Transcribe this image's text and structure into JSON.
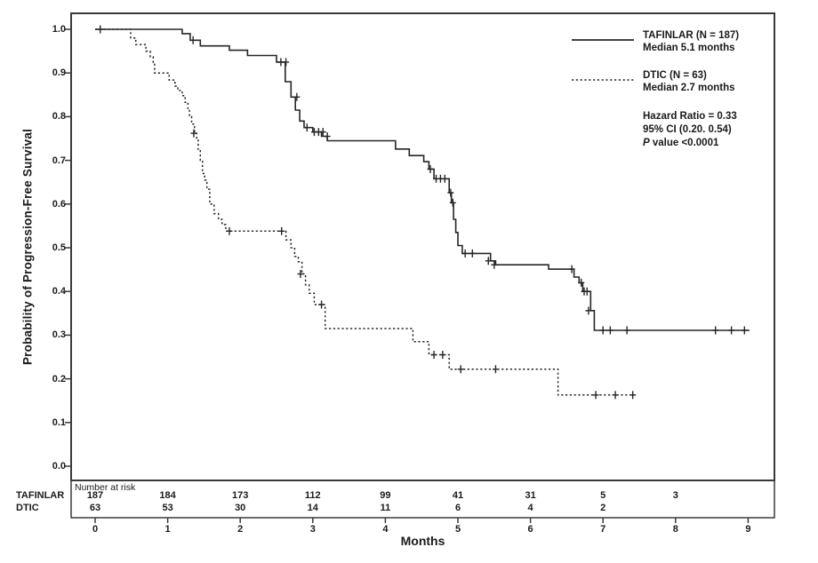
{
  "figure": {
    "y_axis_label": "Probability of Progression-Free Survival",
    "x_axis_label": "Months",
    "legend": {
      "series": [
        {
          "label": "TAFINLAR (N = 187)",
          "median": "Median 5.1 months",
          "line": "solid"
        },
        {
          "label": "DTIC (N = 63)",
          "median": "Median 2.7 months",
          "line": "dashed"
        }
      ],
      "stats": {
        "hazard_ratio": "Hazard Ratio = 0.33",
        "ci": "95% CI (0.20. 0.54)",
        "p_value_prefix": "P",
        "p_value_rest": " value <0.0001"
      }
    },
    "risk_table": {
      "header": "Number at risk",
      "rows": [
        {
          "label": "TAFINLAR",
          "counts": [
            187,
            184,
            173,
            112,
            99,
            41,
            31,
            5,
            3
          ]
        },
        {
          "label": "DTIC",
          "counts": [
            63,
            53,
            30,
            14,
            11,
            6,
            4,
            2
          ]
        }
      ]
    }
  },
  "chart_data": {
    "type": "line",
    "subtype": "kaplan-meier-step",
    "title": "",
    "xlabel": "Months",
    "ylabel": "Probability of Progression-Free Survival",
    "xlim": [
      0,
      9
    ],
    "ylim": [
      0.0,
      1.0
    ],
    "x_ticks": [
      0,
      1,
      2,
      3,
      4,
      5,
      6,
      7,
      8,
      9
    ],
    "y_ticks": [
      1.0,
      0.9,
      0.8,
      0.7,
      0.6,
      0.5,
      0.4,
      0.3,
      0.2,
      0.1,
      0.0
    ],
    "y_tick_labels": [
      "1.0",
      "0.9",
      "0.8",
      "0.7",
      "0.6",
      "0.5",
      "0.4",
      "0.3",
      "0.2",
      "0.1",
      "0.0"
    ],
    "grid": false,
    "legend_position": "top-right",
    "colors": {
      "line": "#262626",
      "text": "#1a1a1a",
      "frame": "#3a3a3a"
    },
    "series": [
      {
        "name": "TAFINLAR",
        "n": 187,
        "median_months": 5.1,
        "line": "solid",
        "steps": [
          [
            0,
            1.0
          ],
          [
            1.2,
            0.99
          ],
          [
            1.31,
            0.975
          ],
          [
            1.45,
            0.962
          ],
          [
            1.85,
            0.952
          ],
          [
            2.1,
            0.94
          ],
          [
            2.5,
            0.925
          ],
          [
            2.62,
            0.88
          ],
          [
            2.7,
            0.845
          ],
          [
            2.76,
            0.815
          ],
          [
            2.82,
            0.79
          ],
          [
            2.88,
            0.775
          ],
          [
            3.0,
            0.765
          ],
          [
            3.12,
            0.755
          ],
          [
            3.2,
            0.745
          ],
          [
            4.14,
            0.726
          ],
          [
            4.33,
            0.711
          ],
          [
            4.53,
            0.697
          ],
          [
            4.6,
            0.68
          ],
          [
            4.67,
            0.658
          ],
          [
            4.88,
            0.626
          ],
          [
            4.91,
            0.603
          ],
          [
            4.94,
            0.565
          ],
          [
            4.97,
            0.535
          ],
          [
            5.0,
            0.505
          ],
          [
            5.06,
            0.487
          ],
          [
            5.45,
            0.47
          ],
          [
            5.52,
            0.461
          ],
          [
            6.25,
            0.451
          ],
          [
            6.6,
            0.433
          ],
          [
            6.67,
            0.42
          ],
          [
            6.72,
            0.4
          ],
          [
            6.83,
            0.356
          ],
          [
            6.88,
            0.311
          ]
        ],
        "end_month": 9.02,
        "censors": [
          [
            0.07,
            1.0
          ],
          [
            1.35,
            0.975
          ],
          [
            2.56,
            0.925
          ],
          [
            2.63,
            0.925
          ],
          [
            2.78,
            0.845
          ],
          [
            2.92,
            0.775
          ],
          [
            3.02,
            0.765
          ],
          [
            3.08,
            0.765
          ],
          [
            3.14,
            0.765
          ],
          [
            3.2,
            0.755
          ],
          [
            4.62,
            0.68
          ],
          [
            4.7,
            0.658
          ],
          [
            4.76,
            0.658
          ],
          [
            4.82,
            0.658
          ],
          [
            4.9,
            0.626
          ],
          [
            4.93,
            0.603
          ],
          [
            5.1,
            0.487
          ],
          [
            5.2,
            0.487
          ],
          [
            5.42,
            0.47
          ],
          [
            5.5,
            0.461
          ],
          [
            6.57,
            0.451
          ],
          [
            6.7,
            0.42
          ],
          [
            6.74,
            0.4
          ],
          [
            6.78,
            0.4
          ],
          [
            6.8,
            0.356
          ],
          [
            7.0,
            0.311
          ],
          [
            7.1,
            0.311
          ],
          [
            7.33,
            0.311
          ],
          [
            8.55,
            0.311
          ],
          [
            8.77,
            0.311
          ],
          [
            8.95,
            0.311
          ]
        ]
      },
      {
        "name": "DTIC",
        "n": 63,
        "median_months": 2.7,
        "line": "dashed",
        "steps": [
          [
            0,
            1.0
          ],
          [
            0.49,
            0.98
          ],
          [
            0.56,
            0.965
          ],
          [
            0.7,
            0.95
          ],
          [
            0.76,
            0.937
          ],
          [
            0.8,
            0.92
          ],
          [
            0.82,
            0.9
          ],
          [
            1.02,
            0.884
          ],
          [
            1.1,
            0.87
          ],
          [
            1.14,
            0.86
          ],
          [
            1.2,
            0.848
          ],
          [
            1.24,
            0.833
          ],
          [
            1.28,
            0.817
          ],
          [
            1.3,
            0.8
          ],
          [
            1.33,
            0.783
          ],
          [
            1.37,
            0.762
          ],
          [
            1.4,
            0.746
          ],
          [
            1.42,
            0.722
          ],
          [
            1.45,
            0.7
          ],
          [
            1.48,
            0.67
          ],
          [
            1.51,
            0.655
          ],
          [
            1.54,
            0.634
          ],
          [
            1.58,
            0.6
          ],
          [
            1.64,
            0.578
          ],
          [
            1.7,
            0.565
          ],
          [
            1.75,
            0.553
          ],
          [
            1.8,
            0.538
          ],
          [
            2.63,
            0.518
          ],
          [
            2.7,
            0.5
          ],
          [
            2.75,
            0.48
          ],
          [
            2.8,
            0.468
          ],
          [
            2.85,
            0.44
          ],
          [
            2.9,
            0.415
          ],
          [
            2.95,
            0.396
          ],
          [
            3.02,
            0.37
          ],
          [
            3.17,
            0.315
          ],
          [
            4.38,
            0.285
          ],
          [
            4.6,
            0.255
          ],
          [
            4.88,
            0.222
          ],
          [
            6.38,
            0.163
          ]
        ],
        "end_month": 7.45,
        "censors": [
          [
            1.36,
            0.762
          ],
          [
            1.85,
            0.538
          ],
          [
            2.57,
            0.538
          ],
          [
            2.83,
            0.44
          ],
          [
            3.12,
            0.37
          ],
          [
            4.67,
            0.255
          ],
          [
            4.79,
            0.255
          ],
          [
            5.04,
            0.222
          ],
          [
            5.52,
            0.222
          ],
          [
            6.9,
            0.163
          ],
          [
            7.17,
            0.163
          ],
          [
            7.41,
            0.163
          ]
        ]
      }
    ]
  }
}
